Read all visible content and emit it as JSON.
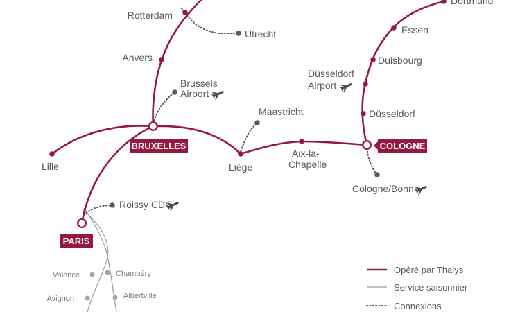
{
  "colors": {
    "primary": "#96183c",
    "seasonal": "#9b9b9b",
    "connection": "#555555",
    "text": "#5a5a5a"
  },
  "hubs": {
    "bruxelles": "BRUXELLES",
    "cologne": "COLOGNE",
    "paris": "PARIS"
  },
  "stations": {
    "rotterdam": "Rotterdam",
    "utrecht": "Utrecht",
    "anvers": "Anvers",
    "brussels_airport_1": "Brussels",
    "brussels_airport_2": "Airport",
    "maastricht": "Maastricht",
    "liege": "Liège",
    "aix_1": "Aix-la-",
    "aix_2": "Chapelle",
    "lille": "Lille",
    "roissy": "Roissy CDG",
    "dortmund": "Dortmund",
    "essen": "Essen",
    "duisbourg": "Duisbourg",
    "dusseldorf_airport_1": "Düsseldorf",
    "dusseldorf_airport_2": "Airport",
    "dusseldorf": "Düsseldorf",
    "cologne_bonn": "Cologne/Bonn",
    "valence": "Valence",
    "chambery": "Chambéry",
    "avignon": "Avignon",
    "albertville": "Albertville"
  },
  "legend": {
    "thalys": "Opéré par Thalys",
    "seasonal": "Service saisonnier",
    "connections": "Connexions"
  },
  "icons": {
    "airport": "airplane-icon"
  }
}
